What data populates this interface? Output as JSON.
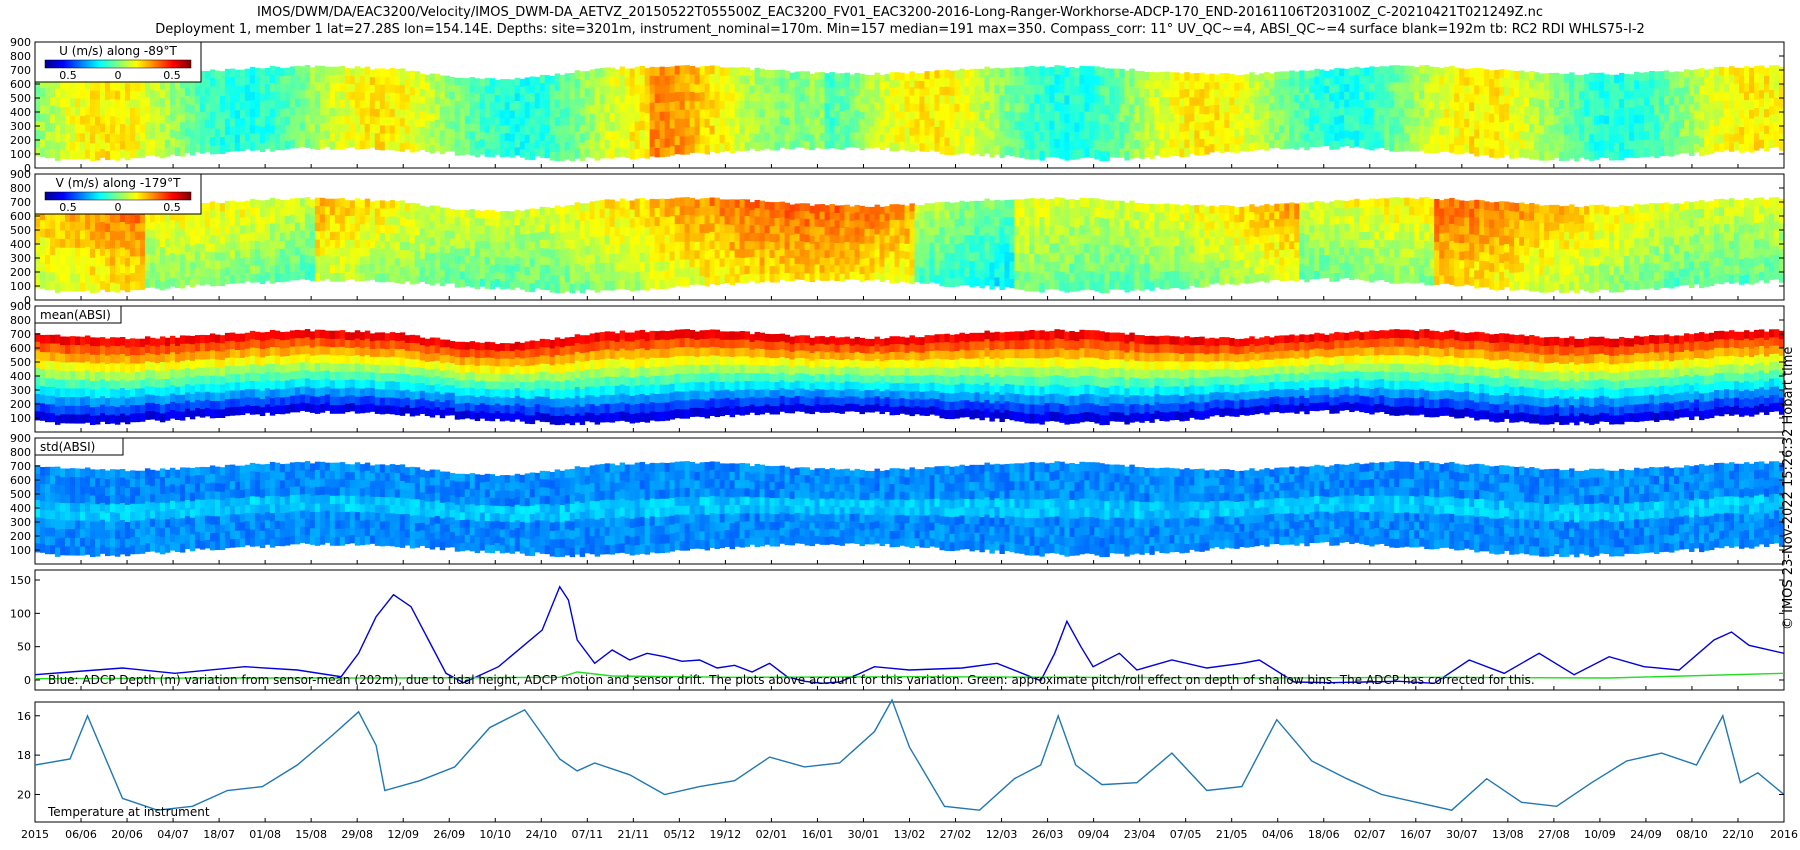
{
  "title_line1": "IMOS/DWM/DA/EAC3200/Velocity/IMOS_DWM-DA_AETVZ_20150522T055500Z_EAC3200_FV01_EAC3200-2016-Long-Ranger-Workhorse-ADCP-170_END-20161106T203100Z_C-20210421T021249Z.nc",
  "title_line2": "Deployment 1, member 1 lat=27.28S lon=154.14E. Depths: site=3201m, instrument_nominal=170m. Min=157 median=191 max=350. Compass_corr: 11° UV_QC~=4, ABSI_QC~=4 surface blank=192m tb: RC2 RDI WHLS75-I-2",
  "credit": "© IMOS 23-Nov-2022 15:26:32 Hobart time",
  "colors": {
    "axis": "#000000",
    "adcp_depth": "#0000dd",
    "pitch_roll": "#22dd22",
    "temperature": "#1f77b4"
  },
  "chart_data": [
    {
      "type": "heatmap",
      "label": "U (m/s) along -89°T",
      "colorbar_ticks": [
        "0.5",
        "0",
        "0.5"
      ],
      "ylim": [
        900,
        0
      ],
      "yticks": [
        "0",
        "100",
        "200",
        "300",
        "400",
        "500",
        "600",
        "700",
        "800",
        "900"
      ],
      "colormap": "jet",
      "value_range": [
        -0.75,
        0.75
      ]
    },
    {
      "type": "heatmap",
      "label": "V (m/s) along -179°T",
      "colorbar_ticks": [
        "0.5",
        "0",
        "0.5"
      ],
      "ylim": [
        900,
        0
      ],
      "yticks": [
        "0",
        "100",
        "200",
        "300",
        "400",
        "500",
        "600",
        "700",
        "800",
        "900"
      ],
      "colormap": "jet",
      "value_range": [
        -0.75,
        0.75
      ]
    },
    {
      "type": "heatmap",
      "label": "mean(ABSI)",
      "ylim": [
        900,
        0
      ],
      "yticks": [
        "100",
        "200",
        "300",
        "400",
        "500",
        "600",
        "700",
        "800",
        "900"
      ],
      "colormap": "jet"
    },
    {
      "type": "heatmap",
      "label": "std(ABSI)",
      "ylim": [
        900,
        0
      ],
      "yticks": [
        "100",
        "200",
        "300",
        "400",
        "500",
        "600",
        "700",
        "800",
        "900"
      ],
      "colormap": "jet"
    },
    {
      "type": "line",
      "annotation": "Blue: ADCP Depth (m) variation from sensor-mean (202m), due to tidal height, ADCP motion and sensor drift. The plots above account for this variation. Green: approximate pitch/roll effect on depth of shallow bins. The ADCP has corrected for this.",
      "ylim": [
        165,
        -15
      ],
      "yticks": [
        "0",
        "50",
        "100",
        "150"
      ],
      "series": [
        {
          "key": "adcp_depth",
          "x": [
            0,
            0.02,
            0.05,
            0.08,
            0.12,
            0.15,
            0.175,
            0.185,
            0.195,
            0.205,
            0.215,
            0.225,
            0.235,
            0.245,
            0.255,
            0.265,
            0.29,
            0.3,
            0.305,
            0.31,
            0.32,
            0.33,
            0.34,
            0.35,
            0.36,
            0.37,
            0.38,
            0.39,
            0.4,
            0.41,
            0.42,
            0.43,
            0.44,
            0.45,
            0.46,
            0.47,
            0.48,
            0.5,
            0.53,
            0.55,
            0.575,
            0.583,
            0.59,
            0.598,
            0.605,
            0.62,
            0.63,
            0.65,
            0.67,
            0.69,
            0.7,
            0.72,
            0.74,
            0.76,
            0.78,
            0.8,
            0.82,
            0.84,
            0.86,
            0.88,
            0.9,
            0.92,
            0.94,
            0.96,
            0.97,
            0.98,
            1.0
          ],
          "y": [
            8,
            12,
            18,
            10,
            20,
            15,
            5,
            40,
            95,
            128,
            110,
            60,
            10,
            -4,
            8,
            20,
            75,
            140,
            120,
            60,
            25,
            45,
            30,
            40,
            35,
            28,
            30,
            18,
            22,
            12,
            25,
            5,
            -2,
            -5,
            -3,
            8,
            20,
            15,
            18,
            25,
            -1,
            40,
            88,
            50,
            20,
            40,
            15,
            30,
            18,
            25,
            30,
            -3,
            -4,
            -3,
            -2,
            -5,
            30,
            10,
            40,
            8,
            35,
            20,
            15,
            60,
            72,
            52,
            40
          ]
        },
        {
          "key": "pitch_roll",
          "x": [
            0,
            0.1,
            0.2,
            0.3,
            0.31,
            0.33,
            0.4,
            0.5,
            0.6,
            0.7,
            0.8,
            0.9,
            1.0
          ],
          "y": [
            2,
            3,
            3,
            4,
            12,
            6,
            4,
            5,
            4,
            3,
            4,
            3,
            10
          ]
        }
      ]
    },
    {
      "type": "line",
      "label": "Temperature at instrument",
      "ylim": [
        15.3,
        21.4
      ],
      "yticks": [
        "16",
        "18",
        "20"
      ],
      "series": [
        {
          "key": "temperature",
          "x": [
            0,
            0.02,
            0.03,
            0.05,
            0.07,
            0.09,
            0.11,
            0.13,
            0.15,
            0.17,
            0.185,
            0.195,
            0.2,
            0.22,
            0.24,
            0.26,
            0.28,
            0.3,
            0.31,
            0.32,
            0.34,
            0.36,
            0.38,
            0.4,
            0.42,
            0.44,
            0.46,
            0.48,
            0.49,
            0.5,
            0.52,
            0.54,
            0.56,
            0.575,
            0.585,
            0.595,
            0.61,
            0.63,
            0.65,
            0.67,
            0.69,
            0.71,
            0.73,
            0.75,
            0.77,
            0.79,
            0.81,
            0.83,
            0.85,
            0.87,
            0.89,
            0.91,
            0.93,
            0.95,
            0.965,
            0.975,
            0.985,
            1.0
          ],
          "y": [
            18.5,
            18.2,
            16.0,
            20.2,
            20.8,
            20.6,
            19.8,
            19.6,
            18.5,
            17.0,
            15.8,
            17.5,
            19.8,
            19.3,
            18.6,
            16.6,
            15.7,
            18.2,
            18.8,
            18.4,
            19.0,
            20.0,
            19.6,
            19.3,
            18.1,
            18.6,
            18.4,
            16.8,
            15.2,
            17.6,
            20.6,
            20.8,
            19.2,
            18.5,
            16.0,
            18.5,
            19.5,
            19.4,
            17.9,
            19.8,
            19.6,
            16.2,
            18.3,
            19.2,
            20.0,
            20.4,
            20.8,
            19.2,
            20.4,
            20.6,
            19.4,
            18.3,
            17.9,
            18.5,
            16.0,
            19.4,
            18.9,
            20.0
          ]
        }
      ]
    }
  ],
  "x_axis": {
    "ticks": [
      "2015",
      "06/06",
      "20/06",
      "04/07",
      "18/07",
      "01/08",
      "15/08",
      "29/08",
      "12/09",
      "26/09",
      "10/10",
      "24/10",
      "07/11",
      "21/11",
      "05/12",
      "19/12",
      "02/01",
      "16/01",
      "30/01",
      "13/02",
      "27/02",
      "12/03",
      "26/03",
      "09/04",
      "23/04",
      "07/05",
      "21/05",
      "04/06",
      "18/06",
      "02/07",
      "16/07",
      "30/07",
      "13/08",
      "27/08",
      "10/09",
      "24/09",
      "08/10",
      "22/10",
      "2016"
    ]
  }
}
